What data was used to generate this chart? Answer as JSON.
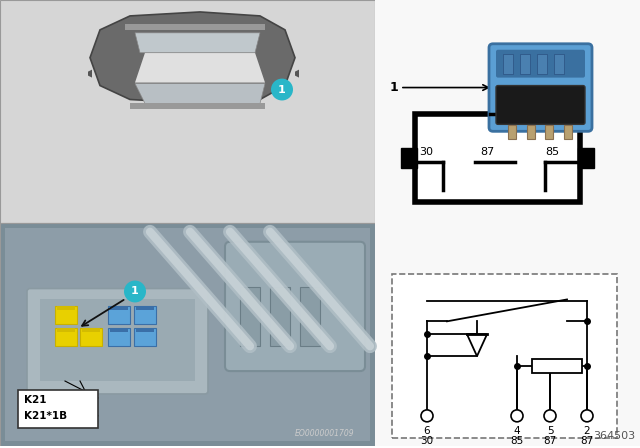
{
  "bg_color": "#ffffff",
  "part_number": "364503",
  "eo_number": "EO0000001709",
  "label_teal": "#29b6c8",
  "label_text": "#ffffff",
  "k21_line1": "K21",
  "k21_line2": "K21*1B",
  "car_bg": "#d4d4d4",
  "car_body": "#7a7a7a",
  "car_roof": "#e8e8e8",
  "car_windshield": "#c8c8c8",
  "engine_bg": "#8fa0ac",
  "relay_blue_light": "#5ba3d9",
  "relay_blue_dark": "#3a6fa8",
  "relay_yellow": "#e8d000",
  "pin_box_bg": "#ffffff",
  "sch_bg": "#ffffff",
  "left_border": "#aaaaaa",
  "right_panel_bg": "#ffffff"
}
